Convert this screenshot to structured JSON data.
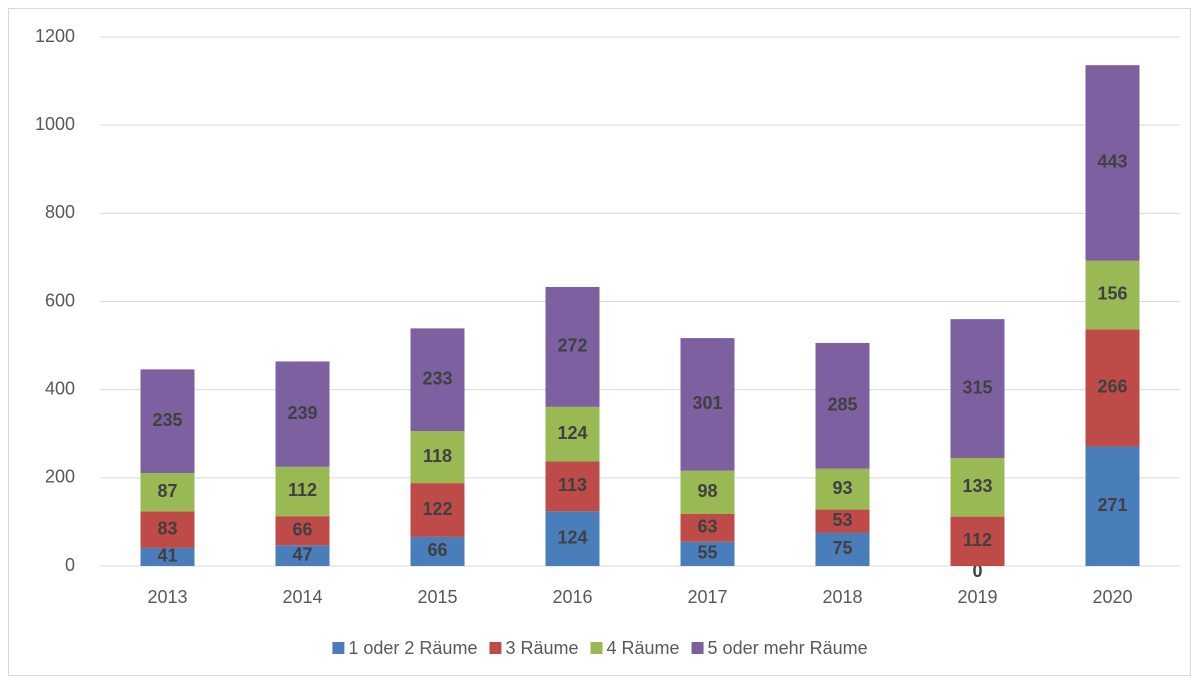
{
  "chart_data": {
    "type": "stacked_bar",
    "categories": [
      "2013",
      "2014",
      "2015",
      "2016",
      "2017",
      "2018",
      "2019",
      "2020"
    ],
    "series": [
      {
        "name": "1 oder 2 Räume",
        "color": "#4a7ebb",
        "values": [
          41,
          47,
          66,
          124,
          55,
          75,
          0,
          271
        ]
      },
      {
        "name": "3 Räume",
        "color": "#be4b48",
        "values": [
          83,
          66,
          122,
          113,
          63,
          53,
          112,
          266
        ]
      },
      {
        "name": "4 Räume",
        "color": "#98b954",
        "values": [
          87,
          112,
          118,
          124,
          98,
          93,
          133,
          156
        ]
      },
      {
        "name": "5 oder mehr Räume",
        "color": "#7d60a0",
        "values": [
          235,
          239,
          233,
          272,
          301,
          285,
          315,
          443
        ]
      }
    ],
    "ylim": [
      0,
      1200
    ],
    "yticks": [
      0,
      200,
      400,
      600,
      800,
      1000,
      1200
    ],
    "grid": true,
    "legend": "bottom"
  }
}
